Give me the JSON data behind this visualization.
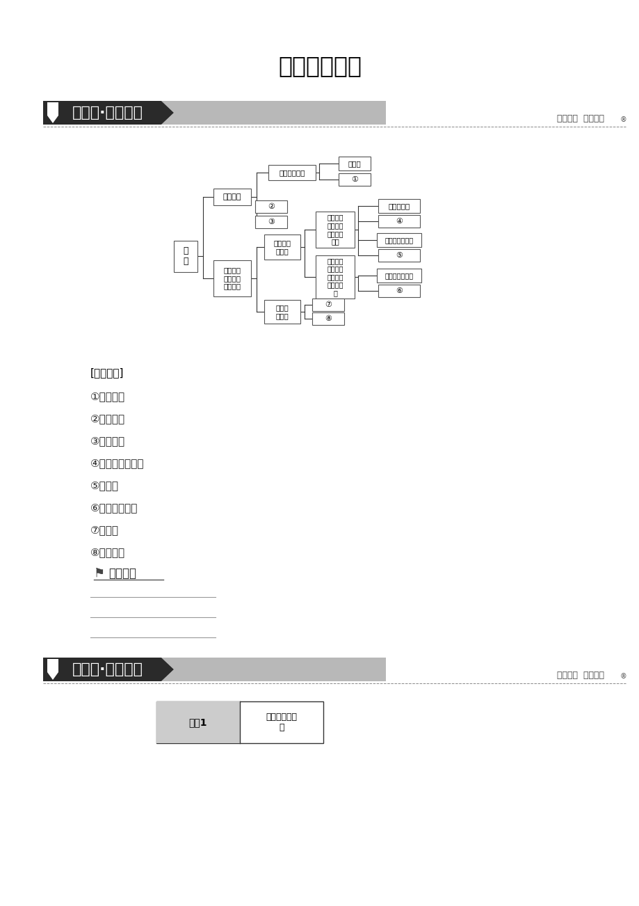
{
  "title": "章末分层突破",
  "bg_color": "#ffffff",
  "section1_label": "巩固层·知识整合",
  "section1_right": "知识体系  反哺教材",
  "section2_label": "提升层·能力强化",
  "section2_right": "深化整合  探究提升",
  "self_check_label": "[自我校对]",
  "items": [
    "①随机数法",
    "②系统抽样",
    "③分层抽样",
    "④频率分布直方图",
    "⑤茎叶图",
    "⑥方差与标准差",
    "⑦散点图",
    "⑧回归方程"
  ],
  "xuesixinde": "学思心得",
  "theme1_label": "主题1",
  "theme1_content": "抽样方法及应\n用"
}
